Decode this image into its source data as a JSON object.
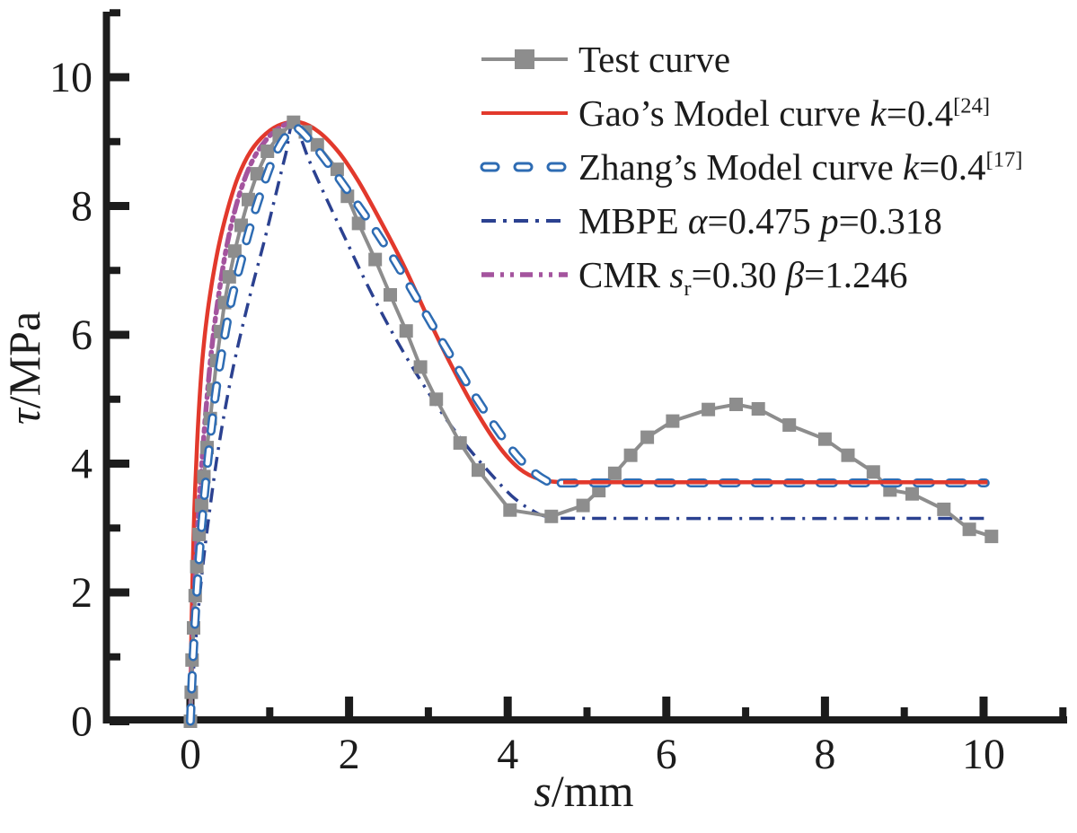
{
  "figure": {
    "background": "#ffffff",
    "axis_color": "#1c1c1c",
    "text_color": "#1c1c1c"
  },
  "chart_data": {
    "type": "line",
    "title": "",
    "xlabel": "s/mm",
    "ylabel": "τ/MPa",
    "xlabel_parts": [
      {
        "t": "s",
        "s": "i"
      },
      {
        "t": "/mm"
      }
    ],
    "ylabel_parts": [
      {
        "t": "τ",
        "s": "i"
      },
      {
        "t": "/MPa"
      }
    ],
    "xlim": [
      0,
      11
    ],
    "ylim": [
      0,
      11
    ],
    "x_major_ticks": [
      0,
      2,
      4,
      6,
      8,
      10
    ],
    "x_minor_ticks": [
      1,
      3,
      5,
      7,
      9,
      11
    ],
    "y_major_ticks": [
      0,
      2,
      4,
      6,
      8,
      10
    ],
    "y_minor_ticks": [
      1,
      3,
      5,
      7,
      9,
      11
    ],
    "grid": false,
    "legend_position": "upper right",
    "series": [
      {
        "id": "gao",
        "name": "Gao's Model curve k=0.4[24]",
        "color": "#e2392c",
        "style": "solid",
        "width": 4.5,
        "smooth": true,
        "points": [
          [
            0.0,
            0.0
          ],
          [
            0.01,
            1.2
          ],
          [
            0.03,
            2.4
          ],
          [
            0.05,
            3.3
          ],
          [
            0.08,
            4.2
          ],
          [
            0.11,
            4.9
          ],
          [
            0.15,
            5.6
          ],
          [
            0.2,
            6.2
          ],
          [
            0.27,
            6.8
          ],
          [
            0.36,
            7.4
          ],
          [
            0.47,
            7.95
          ],
          [
            0.6,
            8.45
          ],
          [
            0.76,
            8.85
          ],
          [
            0.95,
            9.12
          ],
          [
            1.15,
            9.27
          ],
          [
            1.38,
            9.3
          ],
          [
            1.62,
            9.15
          ],
          [
            1.88,
            8.82
          ],
          [
            2.12,
            8.38
          ],
          [
            2.4,
            7.76
          ],
          [
            2.7,
            7.05
          ],
          [
            3.0,
            6.25
          ],
          [
            3.3,
            5.5
          ],
          [
            3.6,
            4.82
          ],
          [
            3.9,
            4.25
          ],
          [
            4.15,
            3.92
          ],
          [
            4.4,
            3.76
          ],
          [
            4.7,
            3.71
          ],
          [
            5.2,
            3.71
          ],
          [
            10.05,
            3.71
          ]
        ],
        "plateau_overlay": [
          [
            4.7,
            3.71
          ],
          [
            10.05,
            3.71
          ]
        ]
      },
      {
        "id": "cmr",
        "name": "CMR sr=0.30 β=1.246",
        "color": "#a4549e",
        "style": "dash-dot-dot",
        "width": 5.5,
        "smooth": true,
        "dash": "13 6 3.5 6 3.5 6",
        "points": [
          [
            0.0,
            0.0
          ],
          [
            0.02,
            1.0
          ],
          [
            0.05,
            2.0
          ],
          [
            0.09,
            3.0
          ],
          [
            0.14,
            3.95
          ],
          [
            0.2,
            4.9
          ],
          [
            0.27,
            5.8
          ],
          [
            0.36,
            6.65
          ],
          [
            0.47,
            7.45
          ],
          [
            0.61,
            8.15
          ],
          [
            0.78,
            8.7
          ],
          [
            0.97,
            9.05
          ],
          [
            1.13,
            9.22
          ],
          [
            1.3,
            9.32
          ]
        ]
      },
      {
        "id": "mbpe",
        "name": "MBPE α=0.475 p=0.318",
        "color": "#2b4190",
        "style": "dash-dot",
        "width": 3.5,
        "smooth": true,
        "dash": "16 8 3 8",
        "points": [
          [
            0.0,
            0.0
          ],
          [
            0.04,
            0.8
          ],
          [
            0.09,
            1.6
          ],
          [
            0.16,
            2.45
          ],
          [
            0.24,
            3.25
          ],
          [
            0.33,
            4.05
          ],
          [
            0.43,
            4.8
          ],
          [
            0.54,
            5.5
          ],
          [
            0.66,
            6.15
          ],
          [
            0.79,
            6.8
          ],
          [
            0.93,
            7.45
          ],
          [
            1.08,
            8.2
          ],
          [
            1.2,
            8.8
          ],
          [
            1.3,
            9.28
          ],
          [
            1.5,
            8.7
          ],
          [
            1.72,
            8.1
          ],
          [
            1.95,
            7.5
          ],
          [
            2.2,
            6.85
          ],
          [
            2.45,
            6.25
          ],
          [
            2.7,
            5.7
          ],
          [
            2.95,
            5.2
          ],
          [
            3.22,
            4.7
          ],
          [
            3.5,
            4.25
          ],
          [
            3.78,
            3.85
          ],
          [
            4.05,
            3.5
          ],
          [
            4.3,
            3.28
          ],
          [
            4.55,
            3.17
          ],
          [
            5.2,
            3.15
          ],
          [
            10.05,
            3.15
          ]
        ]
      },
      {
        "id": "test-curve",
        "name": "Test curve",
        "color": "#8d8d8d",
        "style": "solid-marker",
        "width": 4,
        "marker": "square",
        "marker_size": 15,
        "smooth": false,
        "points": [
          [
            0.0,
            0.0
          ],
          [
            0.01,
            0.45
          ],
          [
            0.02,
            0.95
          ],
          [
            0.04,
            1.45
          ],
          [
            0.06,
            1.95
          ],
          [
            0.08,
            2.4
          ],
          [
            0.11,
            2.9
          ],
          [
            0.14,
            3.35
          ],
          [
            0.17,
            3.8
          ],
          [
            0.21,
            4.25
          ],
          [
            0.25,
            4.7
          ],
          [
            0.29,
            5.15
          ],
          [
            0.33,
            5.6
          ],
          [
            0.38,
            6.05
          ],
          [
            0.43,
            6.5
          ],
          [
            0.49,
            6.9
          ],
          [
            0.56,
            7.3
          ],
          [
            0.64,
            7.7
          ],
          [
            0.73,
            8.1
          ],
          [
            0.84,
            8.5
          ],
          [
            0.97,
            8.85
          ],
          [
            1.12,
            9.1
          ],
          [
            1.3,
            9.3
          ],
          [
            1.45,
            9.15
          ],
          [
            1.6,
            8.95
          ],
          [
            1.85,
            8.57
          ],
          [
            1.98,
            8.15
          ],
          [
            2.12,
            7.73
          ],
          [
            2.33,
            7.17
          ],
          [
            2.52,
            6.62
          ],
          [
            2.72,
            6.06
          ],
          [
            2.9,
            5.5
          ],
          [
            3.1,
            5.0
          ],
          [
            3.4,
            4.32
          ],
          [
            3.63,
            3.9
          ],
          [
            4.03,
            3.28
          ],
          [
            4.55,
            3.18
          ],
          [
            4.95,
            3.35
          ],
          [
            5.15,
            3.58
          ],
          [
            5.35,
            3.85
          ],
          [
            5.55,
            4.13
          ],
          [
            5.76,
            4.41
          ],
          [
            6.08,
            4.66
          ],
          [
            6.53,
            4.84
          ],
          [
            6.88,
            4.92
          ],
          [
            7.16,
            4.85
          ],
          [
            7.55,
            4.6
          ],
          [
            8.0,
            4.38
          ],
          [
            8.29,
            4.13
          ],
          [
            8.61,
            3.87
          ],
          [
            8.82,
            3.59
          ],
          [
            9.1,
            3.53
          ],
          [
            9.5,
            3.29
          ],
          [
            9.82,
            2.98
          ],
          [
            10.1,
            2.87
          ]
        ]
      },
      {
        "id": "zhang",
        "name": "Zhang's Model curve k=0.4[17]",
        "color": "#2e6cb3",
        "style": "hollow-dash",
        "width": 10,
        "smooth": true,
        "dash": "15 21",
        "inner_color": "#ffffff",
        "inner_width": 5,
        "points": [
          [
            0.0,
            0.0
          ],
          [
            0.03,
            0.9
          ],
          [
            0.07,
            1.8
          ],
          [
            0.12,
            2.7
          ],
          [
            0.18,
            3.55
          ],
          [
            0.25,
            4.4
          ],
          [
            0.33,
            5.2
          ],
          [
            0.42,
            5.9
          ],
          [
            0.52,
            6.55
          ],
          [
            0.63,
            7.1
          ],
          [
            0.76,
            7.7
          ],
          [
            0.9,
            8.25
          ],
          [
            1.05,
            8.75
          ],
          [
            1.2,
            9.08
          ],
          [
            1.33,
            9.22
          ],
          [
            1.55,
            8.95
          ],
          [
            1.8,
            8.55
          ],
          [
            2.05,
            8.12
          ],
          [
            2.3,
            7.68
          ],
          [
            2.55,
            7.2
          ],
          [
            2.8,
            6.68
          ],
          [
            3.05,
            6.15
          ],
          [
            3.3,
            5.63
          ],
          [
            3.55,
            5.12
          ],
          [
            3.8,
            4.65
          ],
          [
            4.05,
            4.22
          ],
          [
            4.25,
            3.95
          ],
          [
            4.45,
            3.76
          ],
          [
            4.62,
            3.7
          ],
          [
            5.2,
            3.7
          ],
          [
            10.02,
            3.7
          ]
        ]
      }
    ]
  },
  "legend": {
    "items": [
      {
        "id": "test-curve",
        "sample_style": "solid-marker",
        "color": "#8d8d8d",
        "parts": [
          {
            "t": "Test curve"
          }
        ]
      },
      {
        "id": "gao",
        "sample_style": "solid",
        "color": "#e2392c",
        "parts": [
          {
            "t": "Gao’s Model curve "
          },
          {
            "t": "k",
            "s": "i"
          },
          {
            "t": "=0.4"
          },
          {
            "t": "[24]",
            "s": "sup"
          }
        ]
      },
      {
        "id": "zhang",
        "sample_style": "hollow-dash",
        "color": "#2e6cb3",
        "parts": [
          {
            "t": "Zhang’s Model curve "
          },
          {
            "t": "k",
            "s": "i"
          },
          {
            "t": "=0.4"
          },
          {
            "t": "[17]",
            "s": "sup"
          }
        ]
      },
      {
        "id": "mbpe",
        "sample_style": "dash-dot",
        "color": "#2b4190",
        "parts": [
          {
            "t": "MBPE "
          },
          {
            "t": "α",
            "s": "i"
          },
          {
            "t": "=0.475 "
          },
          {
            "t": "p",
            "s": "i"
          },
          {
            "t": "=0.318"
          }
        ]
      },
      {
        "id": "cmr",
        "sample_style": "dash-dot-dot",
        "color": "#a4549e",
        "parts": [
          {
            "t": "CMR "
          },
          {
            "t": "s",
            "s": "i"
          },
          {
            "t": "r",
            "s": "sub"
          },
          {
            "t": "=0.30 "
          },
          {
            "t": "β",
            "s": "i"
          },
          {
            "t": "=1.246"
          }
        ]
      }
    ]
  }
}
